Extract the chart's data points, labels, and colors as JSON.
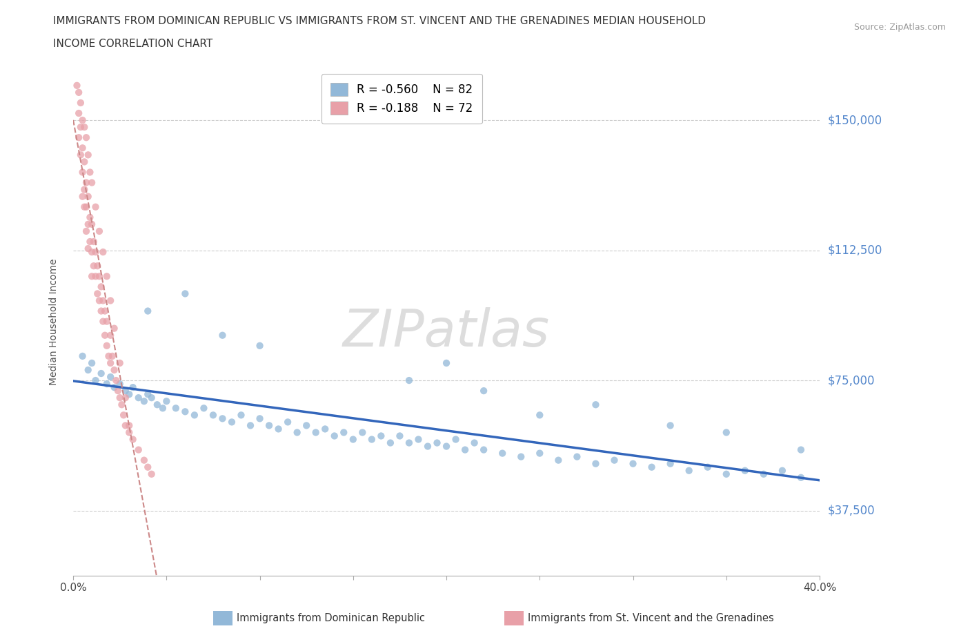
{
  "title_line1": "IMMIGRANTS FROM DOMINICAN REPUBLIC VS IMMIGRANTS FROM ST. VINCENT AND THE GRENADINES MEDIAN HOUSEHOLD",
  "title_line2": "INCOME CORRELATION CHART",
  "source_text": "Source: ZipAtlas.com",
  "ylabel": "Median Household Income",
  "xmin": 0.0,
  "xmax": 0.4,
  "ymin": 18750,
  "ymax": 165000,
  "yticks": [
    37500,
    75000,
    112500,
    150000
  ],
  "ytick_labels": [
    "$37,500",
    "$75,000",
    "$112,500",
    "$150,000"
  ],
  "xticks": [
    0.0,
    0.05,
    0.1,
    0.15,
    0.2,
    0.25,
    0.3,
    0.35,
    0.4
  ],
  "legend_r1": "R = -0.560",
  "legend_n1": "N = 82",
  "legend_r2": "R = -0.188",
  "legend_n2": "N = 72",
  "color_blue": "#92b8d8",
  "color_pink": "#e8a0a8",
  "color_trendline_blue": "#3366bb",
  "color_trendline_pink": "#cc8888",
  "color_title": "#333333",
  "color_axis_label": "#555555",
  "color_ytick_label": "#5588cc",
  "color_xtick_label": "#444444",
  "color_grid": "#cccccc",
  "color_source": "#999999",
  "watermark": "ZIPatlas",
  "blue_x": [
    0.005,
    0.008,
    0.01,
    0.012,
    0.015,
    0.018,
    0.02,
    0.022,
    0.025,
    0.028,
    0.03,
    0.032,
    0.035,
    0.038,
    0.04,
    0.042,
    0.045,
    0.048,
    0.05,
    0.055,
    0.06,
    0.065,
    0.07,
    0.075,
    0.08,
    0.085,
    0.09,
    0.095,
    0.1,
    0.105,
    0.11,
    0.115,
    0.12,
    0.125,
    0.13,
    0.135,
    0.14,
    0.145,
    0.15,
    0.155,
    0.16,
    0.165,
    0.17,
    0.175,
    0.18,
    0.185,
    0.19,
    0.195,
    0.2,
    0.205,
    0.21,
    0.215,
    0.22,
    0.23,
    0.24,
    0.25,
    0.26,
    0.27,
    0.28,
    0.29,
    0.3,
    0.31,
    0.32,
    0.33,
    0.34,
    0.35,
    0.36,
    0.37,
    0.38,
    0.39,
    0.04,
    0.06,
    0.08,
    0.1,
    0.18,
    0.2,
    0.22,
    0.25,
    0.28,
    0.32,
    0.35,
    0.39
  ],
  "blue_y": [
    82000,
    78000,
    80000,
    75000,
    77000,
    74000,
    76000,
    73000,
    74000,
    72000,
    71000,
    73000,
    70000,
    69000,
    71000,
    70000,
    68000,
    67000,
    69000,
    67000,
    66000,
    65000,
    67000,
    65000,
    64000,
    63000,
    65000,
    62000,
    64000,
    62000,
    61000,
    63000,
    60000,
    62000,
    60000,
    61000,
    59000,
    60000,
    58000,
    60000,
    58000,
    59000,
    57000,
    59000,
    57000,
    58000,
    56000,
    57000,
    56000,
    58000,
    55000,
    57000,
    55000,
    54000,
    53000,
    54000,
    52000,
    53000,
    51000,
    52000,
    51000,
    50000,
    51000,
    49000,
    50000,
    48000,
    49000,
    48000,
    49000,
    47000,
    95000,
    100000,
    88000,
    85000,
    75000,
    80000,
    72000,
    65000,
    68000,
    62000,
    60000,
    55000
  ],
  "pink_x": [
    0.002,
    0.003,
    0.003,
    0.004,
    0.004,
    0.005,
    0.005,
    0.005,
    0.006,
    0.006,
    0.006,
    0.007,
    0.007,
    0.007,
    0.008,
    0.008,
    0.008,
    0.009,
    0.009,
    0.01,
    0.01,
    0.01,
    0.011,
    0.011,
    0.012,
    0.012,
    0.013,
    0.013,
    0.014,
    0.014,
    0.015,
    0.015,
    0.016,
    0.016,
    0.017,
    0.017,
    0.018,
    0.018,
    0.019,
    0.02,
    0.02,
    0.021,
    0.022,
    0.023,
    0.024,
    0.025,
    0.026,
    0.027,
    0.028,
    0.03,
    0.032,
    0.035,
    0.038,
    0.04,
    0.042,
    0.003,
    0.004,
    0.005,
    0.006,
    0.007,
    0.008,
    0.009,
    0.01,
    0.012,
    0.014,
    0.016,
    0.018,
    0.02,
    0.022,
    0.025,
    0.028,
    0.03
  ],
  "pink_y": [
    160000,
    152000,
    145000,
    148000,
    140000,
    142000,
    135000,
    128000,
    138000,
    130000,
    125000,
    132000,
    125000,
    118000,
    128000,
    120000,
    113000,
    122000,
    115000,
    120000,
    112000,
    105000,
    115000,
    108000,
    112000,
    105000,
    108000,
    100000,
    105000,
    98000,
    102000,
    95000,
    98000,
    92000,
    95000,
    88000,
    92000,
    85000,
    82000,
    88000,
    80000,
    82000,
    78000,
    75000,
    72000,
    70000,
    68000,
    65000,
    62000,
    60000,
    58000,
    55000,
    52000,
    50000,
    48000,
    158000,
    155000,
    150000,
    148000,
    145000,
    140000,
    135000,
    132000,
    125000,
    118000,
    112000,
    105000,
    98000,
    90000,
    80000,
    70000,
    62000
  ]
}
